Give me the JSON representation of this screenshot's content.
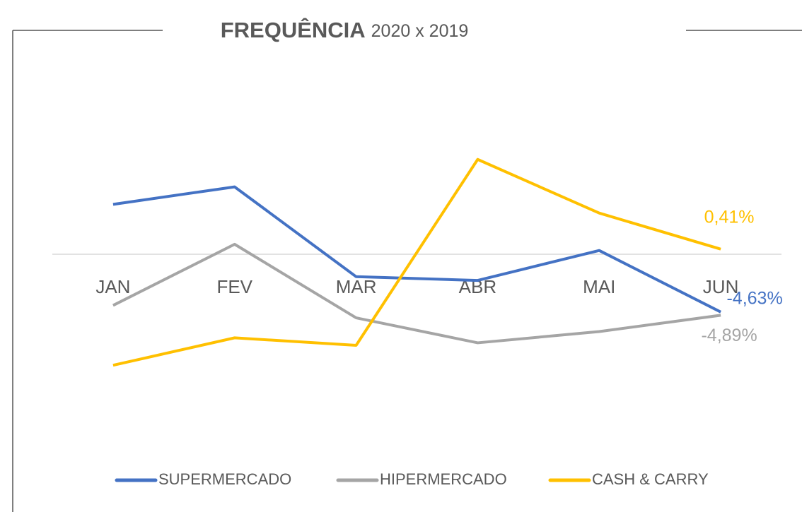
{
  "chart_data": {
    "type": "line",
    "title": "FREQUÊNCIA",
    "subtitle": "2020 x 2019",
    "categories": [
      "JAN",
      "FEV",
      "MAR",
      "ABR",
      "MAI",
      "JUN"
    ],
    "series": [
      {
        "name": "SUPERMERCADO",
        "color": "#4472c4",
        "values": [
          4.0,
          5.4,
          -1.8,
          -2.1,
          0.3,
          -4.63
        ],
        "value_labels": [
          null,
          null,
          null,
          null,
          null,
          "-4,63%"
        ]
      },
      {
        "name": "HIPERMERCADO",
        "color": "#a5a5a5",
        "values": [
          -4.1,
          0.8,
          -5.1,
          -7.1,
          -6.2,
          -4.89
        ],
        "value_labels": [
          null,
          null,
          null,
          null,
          null,
          "-4,89%"
        ]
      },
      {
        "name": "CASH & CARRY",
        "color": "#ffc000",
        "values": [
          -8.9,
          -6.7,
          -7.3,
          7.6,
          3.3,
          0.41
        ],
        "value_labels": [
          null,
          null,
          null,
          null,
          null,
          "0,41%"
        ]
      }
    ],
    "ylim": [
      -12,
      12
    ],
    "legend": "bottom"
  }
}
